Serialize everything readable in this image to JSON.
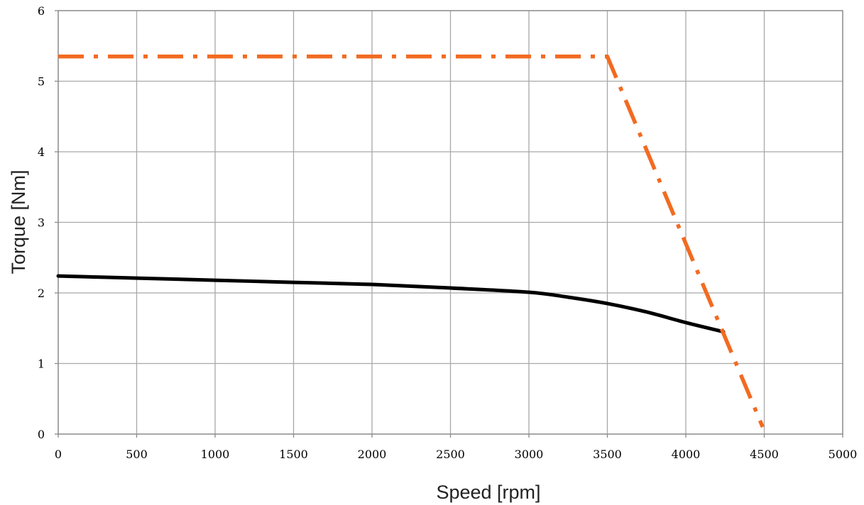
{
  "chart_data": {
    "type": "line",
    "title": "",
    "xlabel": "Speed [rpm]",
    "ylabel": "Torque [Nm]",
    "xlim": [
      0,
      5000
    ],
    "ylim": [
      0,
      6
    ],
    "x_ticks": [
      "0",
      "500",
      "1000",
      "1500",
      "2000",
      "2500",
      "3000",
      "3500",
      "4000",
      "4500",
      "5000"
    ],
    "y_ticks": [
      "0",
      "1",
      "2",
      "3",
      "4",
      "5",
      "6"
    ],
    "grid": true,
    "legend": "none",
    "series": [
      {
        "style": "solid",
        "color": "#000000",
        "points": [
          [
            0,
            2.24
          ],
          [
            500,
            2.21
          ],
          [
            1000,
            2.18
          ],
          [
            1500,
            2.15
          ],
          [
            2000,
            2.12
          ],
          [
            2500,
            2.07
          ],
          [
            3000,
            2.01
          ],
          [
            3250,
            1.94
          ],
          [
            3500,
            1.85
          ],
          [
            3750,
            1.73
          ],
          [
            4000,
            1.58
          ],
          [
            4240,
            1.45
          ]
        ]
      },
      {
        "style": "dash-dot",
        "color": "#f26b21",
        "points": [
          [
            0,
            5.35
          ],
          [
            3500,
            5.35
          ],
          [
            4490,
            0.1
          ]
        ]
      }
    ]
  }
}
